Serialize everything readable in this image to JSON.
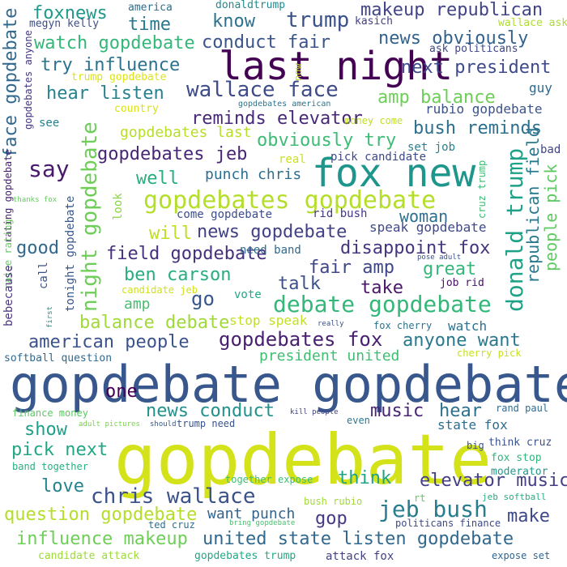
{
  "words": [
    {
      "text": "gopdebate",
      "color": "#d4e21a"
    },
    {
      "text": "gopdebate gopdebate",
      "color": "#38578c"
    },
    {
      "text": "last night",
      "color": "#440154"
    },
    {
      "text": "fox new",
      "color": "#1f968b"
    },
    {
      "text": "gopdebates gopdebate",
      "color": "#b5de2b"
    },
    {
      "text": "debate gopdebate",
      "color": "#35b779"
    },
    {
      "text": "chris wallace",
      "color": "#3b528b"
    },
    {
      "text": "gopdebates fox",
      "color": "#481f70"
    },
    {
      "text": "jeb bush",
      "color": "#287d8e"
    },
    {
      "text": "elevator music",
      "color": "#433e85"
    },
    {
      "text": "united state listen gopdebate",
      "color": "#31688e"
    },
    {
      "text": "influence makeup",
      "color": "#6ece58"
    },
    {
      "text": "question gopdebate",
      "color": "#b5de2b"
    },
    {
      "text": "wallace face",
      "color": "#3e4c8a"
    },
    {
      "text": "gopdebates jeb",
      "color": "#482677"
    },
    {
      "text": "watch gopdebate",
      "color": "#35b779"
    },
    {
      "text": "trump",
      "color": "#3b528b"
    },
    {
      "text": "makeup republican",
      "color": "#414487"
    },
    {
      "text": "face gopdebate",
      "color": "#31688e"
    },
    {
      "text": "night gopdebate",
      "color": "#6ece58"
    },
    {
      "text": "donald trump",
      "color": "#1fa187"
    },
    {
      "text": "republican field",
      "color": "#2a788e"
    },
    {
      "text": "people pick",
      "color": "#5ec962"
    },
    {
      "text": "say",
      "color": "#481a6c"
    },
    {
      "text": "amp balance",
      "color": "#6ece58"
    },
    {
      "text": "hear listen",
      "color": "#26828e"
    },
    {
      "text": "try influence",
      "color": "#2c728e"
    },
    {
      "text": "reminds elevator",
      "color": "#482878"
    },
    {
      "text": "obviously try",
      "color": "#3dbc74"
    },
    {
      "text": "news obviously",
      "color": "#33638d"
    },
    {
      "text": "next president",
      "color": "#3e4a89"
    },
    {
      "text": "bush reminds",
      "color": "#2d708e"
    },
    {
      "text": "ben carson",
      "color": "#27ad81"
    },
    {
      "text": "field gopdebate",
      "color": "#46307e"
    },
    {
      "text": "news gopdebate",
      "color": "#424086"
    },
    {
      "text": "disappoint fox",
      "color": "#453581"
    },
    {
      "text": "fair amp",
      "color": "#3f4788"
    },
    {
      "text": "great",
      "color": "#35b779"
    },
    {
      "text": "balance debate",
      "color": "#9fda3a"
    },
    {
      "text": "american people",
      "color": "#3b528b"
    },
    {
      "text": "anyone want",
      "color": "#2a788e"
    },
    {
      "text": "news conduct",
      "color": "#21918c"
    },
    {
      "text": "music",
      "color": "#482475"
    },
    {
      "text": "hear",
      "color": "#2c728e"
    },
    {
      "text": "one",
      "color": "#440154"
    },
    {
      "text": "go",
      "color": "#39568c"
    },
    {
      "text": "will",
      "color": "#bddf26"
    },
    {
      "text": "well",
      "color": "#29af7f"
    },
    {
      "text": "talk",
      "color": "#3b528b"
    },
    {
      "text": "take",
      "color": "#481769"
    },
    {
      "text": "woman",
      "color": "#2d708e"
    },
    {
      "text": "time",
      "color": "#2a788e"
    },
    {
      "text": "know",
      "color": "#2c728e"
    },
    {
      "text": "conduct fair",
      "color": "#3a548c"
    },
    {
      "text": "foxnews",
      "color": "#1f998a"
    },
    {
      "text": "good",
      "color": "#31688e"
    },
    {
      "text": "show",
      "color": "#1f9e89"
    },
    {
      "text": "pick next",
      "color": "#22a785"
    },
    {
      "text": "love",
      "color": "#25838e"
    },
    {
      "text": "think",
      "color": "#20a486"
    },
    {
      "text": "make",
      "color": "#3e4989"
    },
    {
      "text": "gop",
      "color": "#443a83"
    },
    {
      "text": "want punch",
      "color": "#32648e"
    },
    {
      "text": "punch chris",
      "color": "#2e6e8e"
    },
    {
      "text": "gopdebates last",
      "color": "#b8de29"
    },
    {
      "text": "amp",
      "color": "#44bf70"
    },
    {
      "text": "president united",
      "color": "#40bd72"
    },
    {
      "text": "state fox",
      "color": "#2f6c8e"
    },
    {
      "text": "speak gopdebate",
      "color": "#3f4889"
    },
    {
      "text": "come gopdebate",
      "color": "#3d4d8a"
    },
    {
      "text": "rid bush",
      "color": "#453882"
    },
    {
      "text": "need band",
      "color": "#306a8e"
    },
    {
      "text": "stop speak",
      "color": "#c2df23"
    },
    {
      "text": "watch",
      "color": "#2d718e"
    },
    {
      "text": "guy",
      "color": "#30698e"
    },
    {
      "text": "rubio gopdebate",
      "color": "#3b528b"
    },
    {
      "text": "set job",
      "color": "#27808e"
    },
    {
      "text": "bad",
      "color": "#404588"
    },
    {
      "text": "pick candidate",
      "color": "#3e4989"
    },
    {
      "text": "real",
      "color": "#cae11f"
    },
    {
      "text": "vote",
      "color": "#22a884"
    },
    {
      "text": "call",
      "color": "#3a538b"
    },
    {
      "text": "look",
      "color": "#8bd646"
    },
    {
      "text": "see",
      "color": "#26828e"
    },
    {
      "text": "america",
      "color": "#2e6d8e"
    },
    {
      "text": "donaldtrump",
      "color": "#23898e"
    },
    {
      "text": "megyn kelly",
      "color": "#3d4e8a"
    },
    {
      "text": "kasich",
      "color": "#424186"
    },
    {
      "text": "wallace ask",
      "color": "#addc30"
    },
    {
      "text": "ask politicans",
      "color": "#3f4788"
    },
    {
      "text": "trump gopdebate",
      "color": "#dde318"
    },
    {
      "text": "country",
      "color": "#d8e219"
    },
    {
      "text": "gopdebates american",
      "color": "#2b748e"
    },
    {
      "text": "money come",
      "color": "#c0df25"
    },
    {
      "text": "gopdebates anyone",
      "color": "#453781"
    },
    {
      "text": "rating gopdebate",
      "color": "#482173"
    },
    {
      "text": "thanks fox",
      "color": "#63cb5f"
    },
    {
      "text": "raise rating",
      "color": "#65cb5e"
    },
    {
      "text": "bebecause",
      "color": "#46337f"
    },
    {
      "text": "tonight gopdebate",
      "color": "#38588c"
    },
    {
      "text": "candidate jeb",
      "color": "#d0e11c"
    },
    {
      "text": "first",
      "color": "#20938c"
    },
    {
      "text": "now",
      "color": "#bade28"
    },
    {
      "text": "cruz trump",
      "color": "#3dbc74"
    },
    {
      "text": "pose adult",
      "color": "#3b528b"
    },
    {
      "text": "job rid",
      "color": "#471063"
    },
    {
      "text": "really",
      "color": "#3b528b"
    },
    {
      "text": "fox cherry",
      "color": "#2c728e"
    },
    {
      "text": "cherry pick",
      "color": "#c8e020"
    },
    {
      "text": "softball question",
      "color": "#31688e"
    },
    {
      "text": "finance money",
      "color": "#5dc863"
    },
    {
      "text": "adult pictures",
      "color": "#7ad151"
    },
    {
      "text": "should",
      "color": "#39568c"
    },
    {
      "text": "trump need",
      "color": "#3a548c"
    },
    {
      "text": "kill people",
      "color": "#414287"
    },
    {
      "text": "even",
      "color": "#2a788e"
    },
    {
      "text": "rand paul",
      "color": "#2f6b8e"
    },
    {
      "text": "big",
      "color": "#3b528b"
    },
    {
      "text": "think cruz",
      "color": "#3b528b"
    },
    {
      "text": "fox stop",
      "color": "#2fb47c"
    },
    {
      "text": "moderator",
      "color": "#1f9a8a"
    },
    {
      "text": "band together",
      "color": "#28ae80"
    },
    {
      "text": "together expose",
      "color": "#3fbc73"
    },
    {
      "text": "bush rubio",
      "color": "#a2da37"
    },
    {
      "text": "rt",
      "color": "#5ec962"
    },
    {
      "text": "jeb softball",
      "color": "#27ad81"
    },
    {
      "text": "politicans finance",
      "color": "#3e4a89"
    },
    {
      "text": "ted cruz",
      "color": "#2c718e"
    },
    {
      "text": "bring gopdebate",
      "color": "#4ac16d"
    },
    {
      "text": "candidate attack",
      "color": "#9dd93b"
    },
    {
      "text": "gopdebates trump",
      "color": "#22a785"
    },
    {
      "text": "attack fox",
      "color": "#424186"
    },
    {
      "text": "expose set",
      "color": "#32648e"
    }
  ]
}
